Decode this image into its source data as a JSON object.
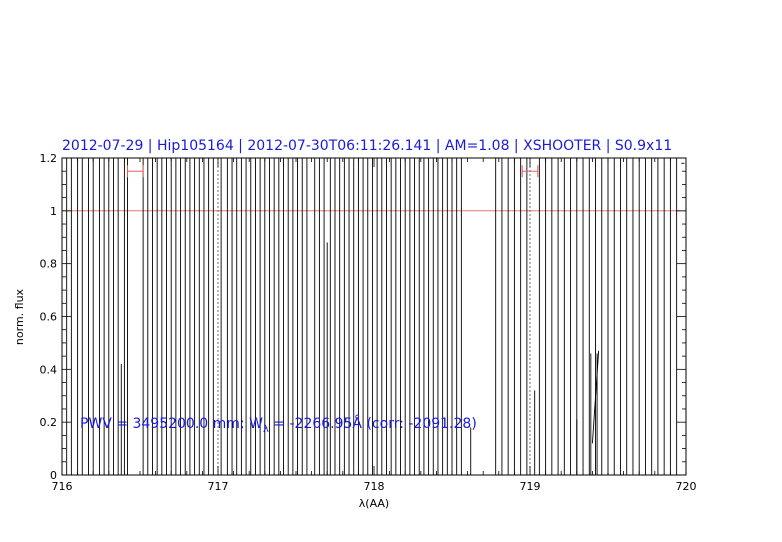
{
  "chart_data": {
    "type": "line",
    "title": "2012-07-29 | Hip105164 | 2012-07-30T06:11:26.141 | AM=1.08 | XSHOOTER | S0.9x11",
    "xlabel": "λ(AA)",
    "ylabel": "norm. flux",
    "xlim": [
      716,
      720
    ],
    "ylim": [
      0,
      1.2
    ],
    "xticks": [
      716,
      717,
      718,
      719,
      720
    ],
    "yticks": [
      0,
      0.2,
      0.4,
      0.6,
      0.8,
      1,
      1.2
    ],
    "xtick_labels": [
      "716",
      "717",
      "718",
      "719",
      "720"
    ],
    "ytick_labels": [
      "0",
      "0.2",
      "0.4",
      "0.6",
      "0.8",
      "1",
      "1.2"
    ],
    "grid": false,
    "reference_line": {
      "y": 1.0,
      "color": "#e06060"
    },
    "vertical_markers": [
      717.0,
      719.0
    ],
    "error_bars": [
      {
        "x_center": 716.47,
        "half_width": 0.05,
        "y": 1.15
      },
      {
        "x_center": 719.0,
        "half_width": 0.05,
        "y": 1.15
      }
    ],
    "annotation": {
      "pwv_text": "PWV = 3495200.0 mm; W",
      "sub": "λ",
      "eq_text": " = -2266.95Å (corr: -2091.28)"
    },
    "series": [
      {
        "color": "#000000",
        "spikes_full": [
          716.03,
          716.06,
          716.1,
          716.13,
          716.17,
          716.2,
          716.24,
          716.27,
          716.3,
          716.33,
          716.36,
          716.4,
          716.42,
          716.52,
          716.55,
          716.58,
          716.61,
          716.64,
          716.67,
          716.7,
          716.73,
          716.76,
          716.79,
          716.82,
          716.85,
          716.88,
          716.91,
          716.94,
          716.97,
          717.02,
          717.06,
          717.09,
          717.12,
          717.15,
          717.18,
          717.21,
          717.24,
          717.27,
          717.3,
          717.33,
          717.36,
          717.39,
          717.42,
          717.45,
          717.48,
          717.51,
          717.54,
          717.57,
          717.62,
          717.65,
          717.68,
          717.72,
          717.75,
          717.78,
          717.81,
          717.84,
          717.87,
          717.9,
          717.93,
          717.96,
          717.99,
          718.02,
          718.05,
          718.08,
          718.11,
          718.14,
          718.17,
          718.2,
          718.23,
          718.26,
          718.29,
          718.32,
          718.35,
          718.38,
          718.41,
          718.44,
          718.47,
          718.5,
          718.53,
          718.56,
          718.78,
          718.82,
          718.86,
          718.9,
          718.94,
          718.98,
          719.06,
          719.1,
          719.14,
          719.18,
          719.22,
          719.26,
          719.3,
          719.34,
          719.38,
          719.42,
          719.46,
          719.5,
          719.54,
          719.58,
          719.62,
          719.66,
          719.7,
          719.74,
          719.78,
          719.82,
          719.86,
          719.9,
          719.94
        ],
        "partials": [
          {
            "x": 716.38,
            "y": 0.42
          },
          {
            "x": 717.7,
            "y": 0.88
          },
          {
            "x": 718.62,
            "y": 0.18
          },
          {
            "x": 719.3,
            "y": 0.21
          },
          {
            "x": 719.39,
            "y": 0.46
          },
          {
            "x": 719.43,
            "y": 0.46
          },
          {
            "x": 719.03,
            "y": 0.32
          }
        ],
        "slopes": [
          {
            "x0": 719.4,
            "y0": 0.12,
            "x1": 719.44,
            "y1": 0.47
          },
          {
            "x0": 719.97,
            "y0": 1.18,
            "x1": 719.99,
            "y1": 1.18
          }
        ]
      }
    ]
  }
}
